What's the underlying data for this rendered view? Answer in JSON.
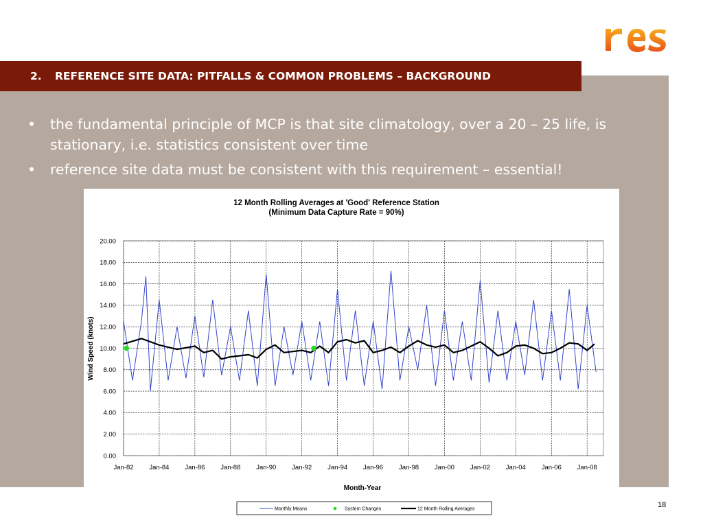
{
  "slide": {
    "logo_text": "res",
    "title_number": "2.",
    "title": "REFERENCE SITE DATA: PITFALLS & COMMON PROBLEMS – BACKGROUND",
    "bullets": [
      "the fundamental principle of MCP is that site climatology, over a 20 – 25 life, is stationary, i.e. statistics consistent over time",
      "reference site data must be consistent with this requirement – essential!"
    ],
    "bullet_marker": "•",
    "page_number": "18"
  },
  "colors": {
    "title_bar": "#7a1a08",
    "content_bg": "#b5a89f",
    "monthly_line": "#3344cc",
    "rolling_line": "#000000",
    "system_changes": "#22dd22",
    "logo_orange": "#e8561b",
    "logo_yellow": "#f7a81b"
  },
  "chart_data": {
    "type": "line",
    "title": "12 Month Rolling Averages at 'Good' Reference Station",
    "subtitle": "(Minimum Data Capture Rate = 90%)",
    "xlabel": "Month-Year",
    "ylabel": "Wind Speed (knots)",
    "ylim": [
      0,
      20
    ],
    "xlim": [
      "1982-01",
      "2008-12"
    ],
    "y_ticks": [
      "0.00",
      "2.00",
      "4.00",
      "6.00",
      "8.00",
      "10.00",
      "12.00",
      "14.00",
      "16.00",
      "18.00",
      "20.00"
    ],
    "x_ticks": [
      "Jan-82",
      "Jan-84",
      "Jan-86",
      "Jan-88",
      "Jan-90",
      "Jan-92",
      "Jan-94",
      "Jan-96",
      "Jan-98",
      "Jan-00",
      "Jan-02",
      "Jan-04",
      "Jan-06",
      "Jan-08"
    ],
    "grid": true,
    "legend_position": "bottom",
    "series": [
      {
        "name": "Monthly Means",
        "style": "thin blue line",
        "x": [
          "1982-01",
          "1982-07",
          "1983-01",
          "1983-04",
          "1983-07",
          "1984-01",
          "1984-07",
          "1985-01",
          "1985-07",
          "1986-01",
          "1986-07",
          "1987-01",
          "1987-07",
          "1988-01",
          "1988-07",
          "1989-01",
          "1989-07",
          "1990-01",
          "1990-07",
          "1991-01",
          "1991-07",
          "1992-01",
          "1992-07",
          "1993-01",
          "1993-07",
          "1994-01",
          "1994-07",
          "1995-01",
          "1995-07",
          "1996-01",
          "1996-07",
          "1997-01",
          "1997-07",
          "1998-01",
          "1998-07",
          "1999-01",
          "1999-07",
          "2000-01",
          "2000-07",
          "2001-01",
          "2001-07",
          "2002-01",
          "2002-07",
          "2003-01",
          "2003-07",
          "2004-01",
          "2004-07",
          "2005-01",
          "2005-07",
          "2006-01",
          "2006-07",
          "2007-01",
          "2007-07",
          "2008-01",
          "2008-07"
        ],
        "y": [
          12.5,
          7.0,
          12.5,
          16.7,
          6.0,
          14.5,
          7.0,
          12.0,
          7.2,
          13.0,
          7.3,
          14.5,
          7.5,
          12.0,
          7.0,
          13.5,
          6.5,
          16.9,
          6.5,
          12.0,
          7.5,
          12.5,
          7.0,
          12.5,
          6.5,
          15.5,
          7.0,
          13.5,
          6.5,
          12.5,
          6.2,
          17.2,
          7.0,
          12.0,
          8.0,
          14.0,
          6.5,
          13.5,
          7.0,
          12.5,
          7.0,
          16.3,
          6.8,
          13.5,
          7.0,
          12.5,
          7.5,
          14.5,
          7.0,
          13.5,
          7.0,
          15.5,
          6.2,
          14.0,
          7.8
        ]
      },
      {
        "name": "12 Month Rolling Averages",
        "style": "thick black line",
        "x": [
          "1982-01",
          "1983-01",
          "1984-01",
          "1985-01",
          "1986-01",
          "1986-07",
          "1987-01",
          "1987-07",
          "1988-01",
          "1988-07",
          "1989-01",
          "1989-07",
          "1990-01",
          "1990-07",
          "1991-01",
          "1991-07",
          "1992-01",
          "1992-07",
          "1993-01",
          "1993-07",
          "1994-01",
          "1994-07",
          "1995-01",
          "1995-07",
          "1996-01",
          "1996-07",
          "1997-01",
          "1997-07",
          "1998-01",
          "1998-07",
          "1999-01",
          "1999-07",
          "2000-01",
          "2000-07",
          "2001-01",
          "2001-07",
          "2002-01",
          "2002-07",
          "2003-01",
          "2003-07",
          "2004-01",
          "2004-07",
          "2005-01",
          "2005-07",
          "2006-01",
          "2006-07",
          "2007-01",
          "2007-07",
          "2008-01",
          "2008-06"
        ],
        "y": [
          10.4,
          10.9,
          10.3,
          9.9,
          10.2,
          9.6,
          9.8,
          9.0,
          9.2,
          9.3,
          9.4,
          9.1,
          9.9,
          10.3,
          9.6,
          9.7,
          9.8,
          9.6,
          10.2,
          9.6,
          10.6,
          10.8,
          10.5,
          10.7,
          9.6,
          9.8,
          10.1,
          9.6,
          10.2,
          10.7,
          10.3,
          10.1,
          10.3,
          9.6,
          9.8,
          10.2,
          10.6,
          10.0,
          9.3,
          9.6,
          10.2,
          10.3,
          10.0,
          9.5,
          9.6,
          10.0,
          10.5,
          10.4,
          9.8,
          10.4
        ]
      },
      {
        "name": "System Changes",
        "style": "green markers",
        "x": [
          "1982-03",
          "1992-09"
        ],
        "y": [
          10.0,
          10.0
        ]
      }
    ]
  }
}
